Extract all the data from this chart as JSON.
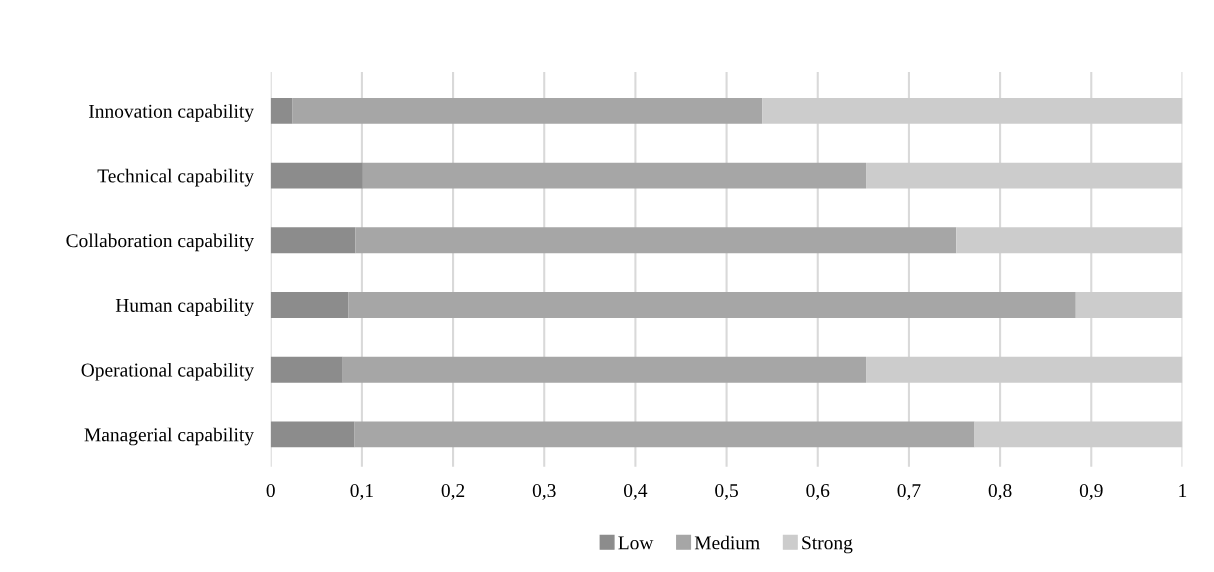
{
  "chart_data": {
    "type": "bar",
    "orientation": "horizontal",
    "stacked": true,
    "categories": [
      "Innovation capability",
      "Technical capability",
      "Collaboration capability",
      "Human capability",
      "Operational capability",
      "Managerial capability"
    ],
    "series": [
      {
        "name": "Low",
        "color": "#8c8c8c",
        "values": [
          0.024,
          0.101,
          0.093,
          0.085,
          0.079,
          0.092
        ]
      },
      {
        "name": "Medium",
        "color": "#a6a6a6",
        "values": [
          0.515,
          0.552,
          0.659,
          0.798,
          0.574,
          0.68
        ]
      },
      {
        "name": "Strong",
        "color": "#cccccc",
        "values": [
          0.461,
          0.347,
          0.248,
          0.117,
          0.347,
          0.228
        ]
      }
    ],
    "xlim": [
      0,
      1
    ],
    "xticks": [
      0,
      {
        "value": 0.1,
        "label": "0,1"
      },
      {
        "value": 0.2,
        "label": "0,2"
      },
      {
        "value": 0.3,
        "label": "0,3"
      },
      {
        "value": 0.4,
        "label": "0,4"
      },
      {
        "value": 0.5,
        "label": "0,5"
      },
      {
        "value": 0.6,
        "label": "0,6"
      },
      {
        "value": 0.7,
        "label": "0,7"
      },
      {
        "value": 0.8,
        "label": "0,8"
      },
      {
        "value": 0.9,
        "label": "0,9"
      },
      1
    ],
    "grid": "x",
    "legend": "bottom"
  }
}
